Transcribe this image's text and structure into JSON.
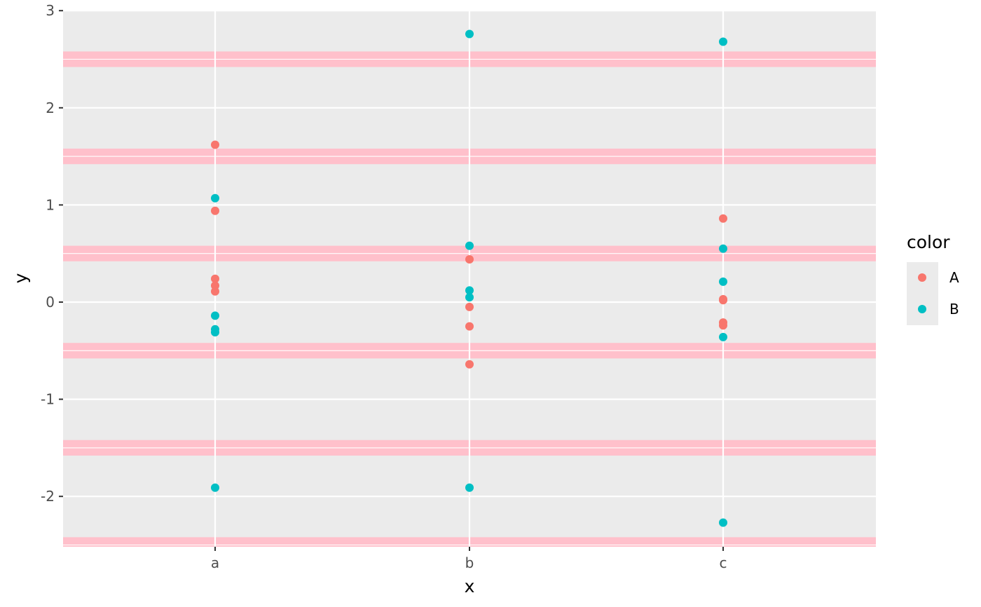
{
  "chart_data": {
    "type": "scatter",
    "title": "",
    "xlabel": "x",
    "ylabel": "y",
    "categories": [
      "a",
      "b",
      "c"
    ],
    "ylim": [
      -2.5,
      3
    ],
    "y_ticks": [
      -2,
      -1,
      0,
      1,
      2,
      3
    ],
    "y_tick_labels": [
      "-2",
      "-1",
      "0",
      "1",
      "2",
      "3"
    ],
    "grid": true,
    "panel_color": "#ebebeb",
    "grid_color": "#ffffff",
    "band_color": "#ffc0cb",
    "bands": [
      {
        "ymin": -2.58,
        "ymax": -2.42
      },
      {
        "ymin": -1.58,
        "ymax": -1.42
      },
      {
        "ymin": -0.58,
        "ymax": -0.42
      },
      {
        "ymin": 0.42,
        "ymax": 0.58
      },
      {
        "ymin": 1.42,
        "ymax": 1.58
      },
      {
        "ymin": 2.42,
        "ymax": 2.58
      }
    ],
    "legend": {
      "title": "color",
      "position": "right",
      "entries": [
        {
          "label": "A",
          "color": "#f8766d"
        },
        {
          "label": "B",
          "color": "#00bfc4"
        }
      ]
    },
    "series": [
      {
        "name": "A",
        "color": "#f8766d",
        "points": [
          {
            "x": "a",
            "y": 1.62
          },
          {
            "x": "a",
            "y": 0.94
          },
          {
            "x": "a",
            "y": 0.24
          },
          {
            "x": "a",
            "y": 0.17
          },
          {
            "x": "a",
            "y": 0.11
          },
          {
            "x": "b",
            "y": 0.44
          },
          {
            "x": "b",
            "y": -0.05
          },
          {
            "x": "b",
            "y": -0.25
          },
          {
            "x": "b",
            "y": -0.64
          },
          {
            "x": "c",
            "y": 0.86
          },
          {
            "x": "c",
            "y": 0.03
          },
          {
            "x": "c",
            "y": 0.02
          },
          {
            "x": "c",
            "y": -0.21
          },
          {
            "x": "c",
            "y": -0.24
          }
        ]
      },
      {
        "name": "B",
        "color": "#00bfc4",
        "points": [
          {
            "x": "a",
            "y": 1.07
          },
          {
            "x": "a",
            "y": -0.14
          },
          {
            "x": "a",
            "y": -0.28
          },
          {
            "x": "a",
            "y": -0.31
          },
          {
            "x": "a",
            "y": -1.91
          },
          {
            "x": "b",
            "y": 2.76
          },
          {
            "x": "b",
            "y": 0.58
          },
          {
            "x": "b",
            "y": 0.12
          },
          {
            "x": "b",
            "y": 0.05
          },
          {
            "x": "b",
            "y": -1.91
          },
          {
            "x": "c",
            "y": 2.68
          },
          {
            "x": "c",
            "y": 0.55
          },
          {
            "x": "c",
            "y": 0.21
          },
          {
            "x": "c",
            "y": -0.36
          },
          {
            "x": "c",
            "y": -2.27
          }
        ]
      }
    ]
  }
}
